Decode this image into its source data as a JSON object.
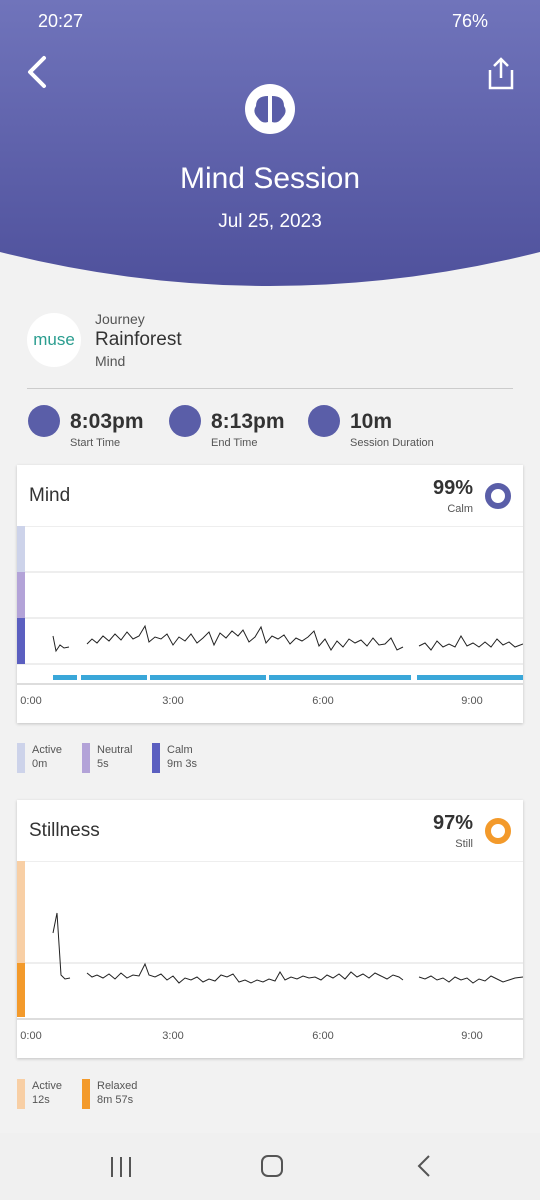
{
  "status": {
    "time": "20:27",
    "battery": "76%"
  },
  "header": {
    "title": "Mind Session",
    "date": "Jul 25, 2023"
  },
  "session": {
    "logo": "muse",
    "label": "Journey",
    "name": "Rainforest",
    "type": "Mind"
  },
  "stats": [
    {
      "value": "8:03pm",
      "label": "Start Time"
    },
    {
      "value": "8:13pm",
      "label": "End Time"
    },
    {
      "value": "10m",
      "label": "Session Duration"
    }
  ],
  "cards": [
    {
      "title": "Mind",
      "percent": "99%",
      "state": "Calm",
      "xticks": [
        "0:00",
        "3:00",
        "6:00",
        "9:00"
      ],
      "legend": [
        {
          "name": "Active",
          "value": "0m"
        },
        {
          "name": "Neutral",
          "value": "5s"
        },
        {
          "name": "Calm",
          "value": "9m 3s"
        }
      ]
    },
    {
      "title": "Stillness",
      "percent": "97%",
      "state": "Still",
      "xticks": [
        "0:00",
        "3:00",
        "6:00",
        "9:00"
      ],
      "legend": [
        {
          "name": "Active",
          "value": "12s"
        },
        {
          "name": "Relaxed",
          "value": "8m 57s"
        }
      ]
    }
  ]
}
